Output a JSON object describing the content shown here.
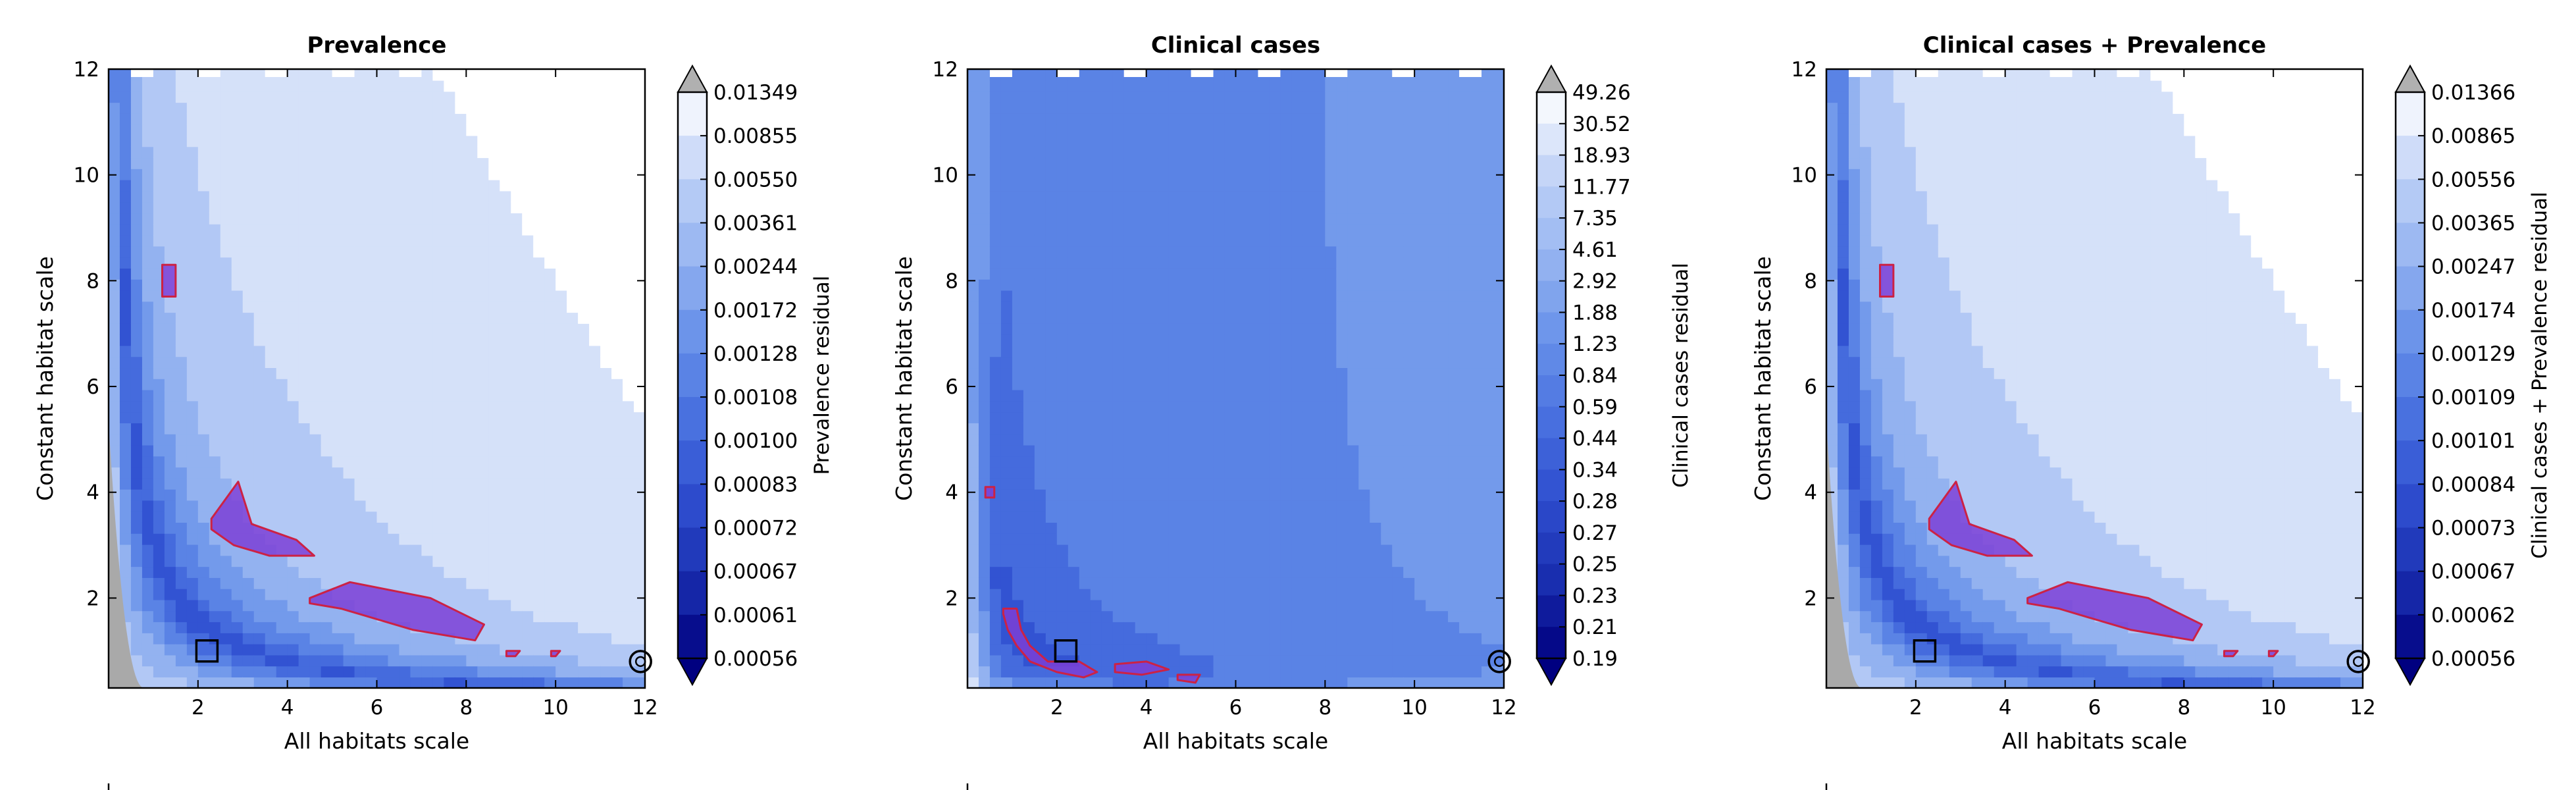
{
  "colors": {
    "under": "#000080",
    "over": "#b0b0b0",
    "white": "#ffffff",
    "mask": "#a9a9a9",
    "highlight_fill": "#7b3fd6",
    "highlight_edge": "#cc2244",
    "marker": "#000000"
  },
  "chart_data": [
    {
      "type": "heatmap",
      "title": "Prevalence",
      "xlabel": "All habitats scale",
      "ylabel": "Constant habitat scale",
      "xlim": [
        0,
        12
      ],
      "ylim": [
        0.3,
        12
      ],
      "xticks": [
        2,
        4,
        6,
        8,
        10,
        12
      ],
      "yticks": [
        2,
        4,
        6,
        8,
        10,
        12
      ],
      "colorbar": {
        "label": "Prevalence residual",
        "levels": [
          "0.01349",
          "0.00855",
          "0.00550",
          "0.00361",
          "0.00244",
          "0.00172",
          "0.00128",
          "0.00108",
          "0.00100",
          "0.00083",
          "0.00072",
          "0.00067",
          "0.00061",
          "0.00056"
        ],
        "extend": "both"
      },
      "highlight_regions": [
        {
          "x": [
            1.2,
            1.5,
            1.5,
            1.2
          ],
          "y": [
            7.7,
            7.7,
            8.3,
            8.3
          ]
        },
        {
          "x": [
            2.3,
            2.9,
            3.2,
            4.2,
            4.6,
            3.6,
            2.8,
            2.3
          ],
          "y": [
            3.5,
            4.2,
            3.4,
            3.1,
            2.8,
            2.8,
            3.0,
            3.3
          ]
        },
        {
          "x": [
            4.5,
            5.4,
            7.2,
            8.4,
            8.2,
            6.8,
            5.2,
            4.5
          ],
          "y": [
            2.0,
            2.3,
            2.0,
            1.5,
            1.2,
            1.4,
            1.8,
            1.9
          ]
        },
        {
          "x": [
            8.9,
            9.2,
            9.1,
            8.9
          ],
          "y": [
            1.0,
            1.0,
            0.9,
            0.9
          ]
        },
        {
          "x": [
            9.9,
            10.1,
            10.0,
            9.9
          ],
          "y": [
            1.0,
            1.0,
            0.9,
            0.9
          ]
        }
      ],
      "markers": [
        {
          "symbol": "square",
          "x": 2.2,
          "y": 1.0
        },
        {
          "symbol": "circle",
          "x": 11.9,
          "y": 0.8
        }
      ],
      "legend": {
        "placement": "bottom-left"
      }
    },
    {
      "type": "heatmap",
      "title": "Clinical cases",
      "xlabel": "All habitats scale",
      "ylabel": "Constant habitat scale",
      "xlim": [
        0,
        12
      ],
      "ylim": [
        0.3,
        12
      ],
      "xticks": [
        2,
        4,
        6,
        8,
        10,
        12
      ],
      "yticks": [
        2,
        4,
        6,
        8,
        10,
        12
      ],
      "colorbar": {
        "label": "Clinical cases residual",
        "levels": [
          "49.26",
          "30.52",
          "18.93",
          "11.77",
          "7.35",
          "4.61",
          "2.92",
          "1.88",
          "1.23",
          "0.84",
          "0.59",
          "0.44",
          "0.34",
          "0.28",
          "0.27",
          "0.25",
          "0.23",
          "0.21",
          "0.19"
        ],
        "extend": "both"
      },
      "highlight_regions": [
        {
          "x": [
            0.4,
            0.6,
            0.6,
            0.4
          ],
          "y": [
            3.9,
            3.9,
            4.1,
            4.1
          ]
        },
        {
          "x": [
            0.8,
            1.1,
            1.2,
            1.4,
            1.8,
            2.5,
            2.9,
            2.6,
            2.0,
            1.4,
            1.1,
            0.9,
            0.8
          ],
          "y": [
            1.8,
            1.8,
            1.4,
            1.1,
            0.8,
            0.8,
            0.6,
            0.5,
            0.6,
            0.8,
            1.1,
            1.4,
            1.7
          ]
        },
        {
          "x": [
            3.3,
            4.0,
            4.5,
            3.9,
            3.3
          ],
          "y": [
            0.75,
            0.8,
            0.65,
            0.55,
            0.6
          ]
        },
        {
          "x": [
            4.7,
            5.2,
            5.1,
            4.7
          ],
          "y": [
            0.55,
            0.55,
            0.4,
            0.45
          ]
        }
      ],
      "markers": [
        {
          "symbol": "square",
          "x": 2.2,
          "y": 1.0
        },
        {
          "symbol": "circle",
          "x": 11.9,
          "y": 0.8
        }
      ],
      "legend": {
        "placement": "bottom-left"
      }
    },
    {
      "type": "heatmap",
      "title": "Clinical cases + Prevalence",
      "xlabel": "All habitats scale",
      "ylabel": "Constant habitat scale",
      "xlim": [
        0,
        12
      ],
      "ylim": [
        0.3,
        12
      ],
      "xticks": [
        2,
        4,
        6,
        8,
        10,
        12
      ],
      "yticks": [
        2,
        4,
        6,
        8,
        10,
        12
      ],
      "colorbar": {
        "label": "Clinical cases + Prevalence residual",
        "levels": [
          "0.01366",
          "0.00865",
          "0.00556",
          "0.00365",
          "0.00247",
          "0.00174",
          "0.00129",
          "0.00109",
          "0.00101",
          "0.00084",
          "0.00073",
          "0.00067",
          "0.00062",
          "0.00056"
        ],
        "extend": "both"
      },
      "highlight_regions": [
        {
          "x": [
            1.2,
            1.5,
            1.5,
            1.2
          ],
          "y": [
            7.7,
            7.7,
            8.3,
            8.3
          ]
        },
        {
          "x": [
            2.3,
            2.9,
            3.2,
            4.2,
            4.6,
            3.6,
            2.8,
            2.3
          ],
          "y": [
            3.5,
            4.2,
            3.4,
            3.1,
            2.8,
            2.8,
            3.0,
            3.3
          ]
        },
        {
          "x": [
            4.5,
            5.4,
            7.2,
            8.4,
            8.2,
            6.8,
            5.2,
            4.5
          ],
          "y": [
            2.0,
            2.3,
            2.0,
            1.5,
            1.2,
            1.4,
            1.8,
            1.9
          ]
        },
        {
          "x": [
            8.9,
            9.2,
            9.1,
            8.9
          ],
          "y": [
            1.0,
            1.0,
            0.9,
            0.9
          ]
        },
        {
          "x": [
            9.9,
            10.1,
            10.0,
            9.9
          ],
          "y": [
            1.0,
            1.0,
            0.9,
            0.9
          ]
        }
      ],
      "markers": [
        {
          "symbol": "square",
          "x": 2.2,
          "y": 1.0
        },
        {
          "symbol": "circle",
          "x": 11.9,
          "y": 0.8
        }
      ],
      "legend": {
        "placement": "bottom-left"
      }
    }
  ]
}
